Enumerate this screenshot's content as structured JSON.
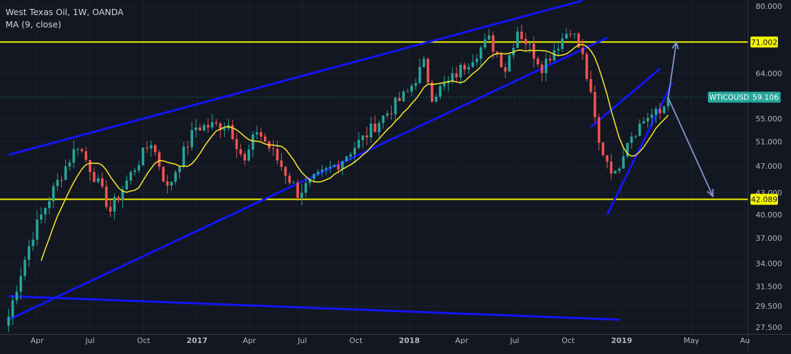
{
  "header": {
    "title": "West Texas Oil, 1W, OANDA",
    "indicator": "MA (9, close)"
  },
  "colors": {
    "background": "#131722",
    "grid": "#1e2230",
    "axis_text": "#b2b5be",
    "up": "#26a69a",
    "down": "#ef5350",
    "ma": "#f3e32b",
    "trendline": "#1414ff",
    "horizontal_level": "#f5f500",
    "arrow": "#7b8fc1",
    "price_tag": "#26a69a"
  },
  "chart_data": {
    "type": "candlestick",
    "symbol": "WTICOUSD",
    "interval": "1W",
    "x_tick_labels": [
      "Apr",
      "Jul",
      "Oct",
      "2017",
      "Apr",
      "Jul",
      "Oct",
      "2018",
      "Apr",
      "Jul",
      "Oct",
      "2019",
      "May",
      "Au"
    ],
    "x_tick_dates": [
      "2016-04-01",
      "2016-07-01",
      "2016-10-01",
      "2017-01-01",
      "2017-04-01",
      "2017-07-01",
      "2017-10-01",
      "2018-01-01",
      "2018-04-01",
      "2018-07-01",
      "2018-10-01",
      "2019-01-01",
      "2019-05-01",
      "2019-08-01"
    ],
    "y_tick_labels": [
      "80.000",
      "71.000",
      "64.000",
      "59.106",
      "55.000",
      "51.000",
      "47.000",
      "43.000",
      "40.000",
      "37.000",
      "34.000",
      "31.500",
      "29.500",
      "27.500"
    ],
    "y_ticks": [
      80,
      64,
      55,
      51,
      47,
      43,
      40,
      37,
      34,
      31.5,
      29.5,
      27.5
    ],
    "ylim": [
      26.8,
      81.5
    ],
    "y_scale": "log",
    "last_price": {
      "label": "WTICOUSD",
      "value": "59.106",
      "value_num": 59.106
    },
    "levels": [
      {
        "value": 71.002,
        "label": "71.002"
      },
      {
        "value": 42.089,
        "label": "42.089"
      }
    ],
    "price_anchors": [
      {
        "date": "2016-02-12",
        "price": 28.5
      },
      {
        "date": "2016-03-25",
        "price": 37.5
      },
      {
        "date": "2016-06-10",
        "price": 50.5
      },
      {
        "date": "2016-08-05",
        "price": 40.5
      },
      {
        "date": "2016-10-14",
        "price": 51.0
      },
      {
        "date": "2016-11-11",
        "price": 43.5
      },
      {
        "date": "2016-12-30",
        "price": 53.5
      },
      {
        "date": "2017-02-24",
        "price": 54.0
      },
      {
        "date": "2017-03-24",
        "price": 47.5
      },
      {
        "date": "2017-04-14",
        "price": 53.0
      },
      {
        "date": "2017-06-23",
        "price": 43.0
      },
      {
        "date": "2017-09-01",
        "price": 47.5
      },
      {
        "date": "2017-10-13",
        "price": 51.5
      },
      {
        "date": "2017-12-29",
        "price": 60.0
      },
      {
        "date": "2018-01-26",
        "price": 66.0
      },
      {
        "date": "2018-02-09",
        "price": 59.5
      },
      {
        "date": "2018-03-09",
        "price": 62.0
      },
      {
        "date": "2018-05-18",
        "price": 71.5
      },
      {
        "date": "2018-06-15",
        "price": 65.0
      },
      {
        "date": "2018-07-06",
        "price": 74.0
      },
      {
        "date": "2018-08-17",
        "price": 65.5
      },
      {
        "date": "2018-10-05",
        "price": 74.5
      },
      {
        "date": "2018-10-26",
        "price": 67.5
      },
      {
        "date": "2018-11-23",
        "price": 50.5
      },
      {
        "date": "2018-12-21",
        "price": 45.5
      },
      {
        "date": "2019-01-11",
        "price": 51.5
      },
      {
        "date": "2019-02-15",
        "price": 55.5
      },
      {
        "date": "2019-03-08",
        "price": 56.0
      },
      {
        "date": "2019-03-22",
        "price": 59.1
      }
    ],
    "drawings": {
      "trendlines": [
        {
          "from": {
            "date": "2016-02-12",
            "price": 48.8
          },
          "to": {
            "date": "2018-10-26",
            "price": 81.5
          }
        },
        {
          "from": {
            "date": "2016-02-12",
            "price": 28.2
          },
          "to": {
            "date": "2018-12-07",
            "price": 72.0
          }
        },
        {
          "from": {
            "date": "2016-02-12",
            "price": 30.5
          },
          "to": {
            "date": "2018-12-28",
            "price": 28.2
          }
        },
        {
          "from": {
            "date": "2018-11-09",
            "price": 53.5
          },
          "to": {
            "date": "2019-03-08",
            "price": 65.0
          }
        },
        {
          "from": {
            "date": "2018-12-07",
            "price": 40.0
          },
          "to": {
            "date": "2019-03-29",
            "price": 62.0
          }
        }
      ],
      "arrows": [
        {
          "from": {
            "date": "2019-03-22",
            "price": 59.0
          },
          "to": {
            "date": "2019-04-05",
            "price": 71.0
          }
        },
        {
          "from": {
            "date": "2019-03-22",
            "price": 59.0
          },
          "to": {
            "date": "2019-06-07",
            "price": 42.5
          }
        }
      ]
    }
  }
}
